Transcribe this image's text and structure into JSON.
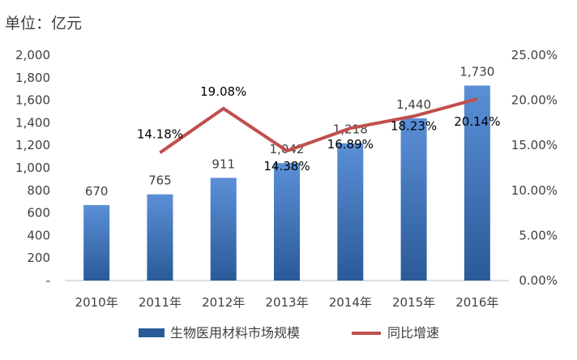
{
  "unit_label": "单位：亿元",
  "colors": {
    "bar_top": "#5b8fd6",
    "bar_bottom": "#2a5a98",
    "line": "#c0504d",
    "axis": "#bfbfbf",
    "text": "#404040"
  },
  "chart_data": {
    "type": "bar",
    "categories": [
      "2010年",
      "2011年",
      "2012年",
      "2013年",
      "2014年",
      "2015年",
      "2016年"
    ],
    "series": [
      {
        "name": "生物医用材料市场规模",
        "type": "bar",
        "axis": "left",
        "values": [
          670,
          765,
          911,
          1042,
          1218,
          1440,
          1730
        ],
        "labels": [
          "670",
          "765",
          "911",
          "1,042",
          "1,218",
          "1,440",
          "1,730"
        ]
      },
      {
        "name": "同比增速",
        "type": "line",
        "axis": "right",
        "values": [
          null,
          14.18,
          19.08,
          14.38,
          16.89,
          18.23,
          20.14
        ],
        "labels": [
          "",
          "14.18%",
          "19.08%",
          "14.38%",
          "16.89%",
          "18.23%",
          "20.14%"
        ]
      }
    ],
    "y_left": {
      "ylim": [
        0,
        2000
      ],
      "ticks": [
        0,
        200,
        400,
        600,
        800,
        1000,
        1200,
        1400,
        1600,
        1800,
        2000
      ],
      "tick_labels": [
        "-",
        "200",
        "400",
        "600",
        "800",
        "1,000",
        "1,200",
        "1,400",
        "1,600",
        "1,800",
        "2,000"
      ]
    },
    "y_right": {
      "ylim": [
        0,
        25
      ],
      "ticks": [
        0,
        5,
        10,
        15,
        20,
        25
      ],
      "tick_labels": [
        "0.00%",
        "5.00%",
        "10.00%",
        "15.00%",
        "20.00%",
        "25.00%"
      ]
    },
    "legend": {
      "position": "bottom",
      "items": [
        "生物医用材料市场规模",
        "同比增速"
      ]
    },
    "grid": false
  }
}
